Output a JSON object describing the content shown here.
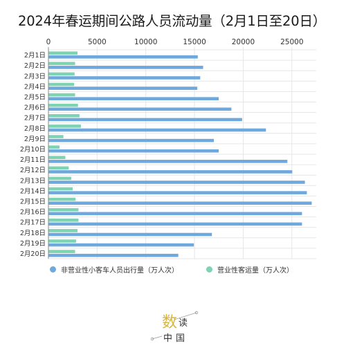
{
  "colors": {
    "series1": "#6fa8dc",
    "series2": "#7ed3b2",
    "grid": "#e6e6e6",
    "axis": "#888888",
    "logo_gold": "#d9b43a",
    "logo_dark": "#333333"
  },
  "chart_data": {
    "type": "bar",
    "orientation": "horizontal",
    "title": "2024年春运期间公路人员流动量（2月1日至20日）",
    "categories": [
      "2月1日",
      "2月2日",
      "2月3日",
      "2月4日",
      "2月5日",
      "2月6日",
      "2月7日",
      "2月8日",
      "2月9日",
      "2月10日",
      "2月11日",
      "2月12日",
      "2月13日",
      "2月14日",
      "2月15日",
      "2月16日",
      "2月17日",
      "2月18日",
      "2月19日",
      "2月20日"
    ],
    "series": [
      {
        "name": "非营业性小客车人员出行量（万人次）",
        "values": [
          15300,
          15850,
          15550,
          15250,
          17450,
          18750,
          19850,
          22300,
          16950,
          17450,
          24500,
          25000,
          26300,
          26500,
          27000,
          26000,
          26000,
          16750,
          14900,
          13300
        ]
      },
      {
        "name": "营业性客运量（万人次）",
        "values": [
          2950,
          2700,
          2650,
          2600,
          2700,
          3000,
          3150,
          3300,
          1500,
          1100,
          1700,
          2050,
          2300,
          2450,
          2750,
          3050,
          3050,
          2950,
          2800,
          2700
        ]
      }
    ],
    "xlim": [
      0,
      27500
    ],
    "xticks": [
      0,
      5000,
      10000,
      15000,
      20000,
      25000
    ],
    "grid": true,
    "legend_position": "bottom"
  },
  "logo": {
    "char1": "数",
    "char2": "读",
    "char3": "中",
    "char4": "国"
  }
}
